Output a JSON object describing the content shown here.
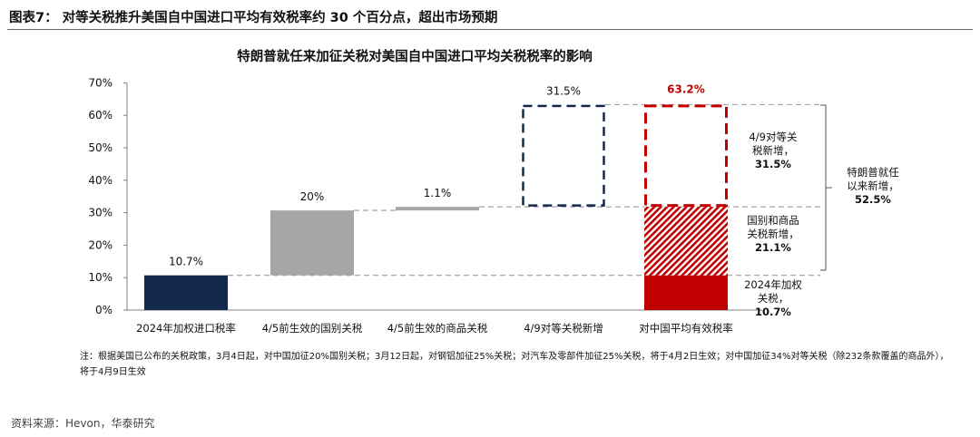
{
  "header": {
    "title": "图表7：  对等关税推升美国自中国进口平均有效税率约 30 个百分点，超出市场预期"
  },
  "source": "资料来源：Hevon，华泰研究",
  "note": "注：根据美国已公布的关税政策，3月4日起，对中国加征20%国别关税；3月12日起，对钢铝加征25%关税；对汽车及零部件加征25%关税，将于4月2日生效；对中国加征34%对等关税（除232条款覆盖的商品外），将于4月9日生效",
  "colors": {
    "navy": "#13294b",
    "gray": "#a6a6a6",
    "red": "#c00000",
    "axis": "#808080"
  },
  "chart_data": {
    "type": "bar",
    "subtype": "waterfall",
    "title": "特朗普就任来加征关税对美国自中国进口平均关税税率的影响",
    "ylim": [
      0,
      70
    ],
    "y_ticks": [
      "0%",
      "10%",
      "20%",
      "30%",
      "40%",
      "50%",
      "60%",
      "70%"
    ],
    "categories": [
      "2024年加权进口税率",
      "4/5前生效的国别关税",
      "4/5前生效的商品关税",
      "4/9对等关税新增",
      "对中国平均有效税率"
    ],
    "bars": [
      {
        "category": "2024年加权进口税率",
        "base": 0,
        "value": 10.7,
        "style": "navy-solid",
        "label": "10.7%"
      },
      {
        "category": "4/5前生效的国别关税",
        "base": 10.7,
        "value": 20,
        "style": "gray-solid",
        "label": "20%"
      },
      {
        "category": "4/5前生效的商品关税",
        "base": 30.7,
        "value": 1.1,
        "style": "gray-solid",
        "label": "1.1%"
      },
      {
        "category": "4/9对等关税新增",
        "base": 31.8,
        "value": 31.5,
        "style": "navy-dashed-outline",
        "label": "31.5%"
      },
      {
        "category": "对中国平均有效税率",
        "stack": [
          {
            "base": 0,
            "value": 10.7,
            "style": "red-solid"
          },
          {
            "base": 10.7,
            "value": 21.1,
            "style": "red-hatched"
          },
          {
            "base": 31.8,
            "value": 31.5,
            "style": "red-dashed-outline"
          }
        ],
        "label": "63.2%"
      }
    ],
    "annotations": [
      {
        "lines": [
          "4/9对等关",
          "税新增，",
          "31.5%"
        ]
      },
      {
        "lines": [
          "国别和商品",
          "关税新增，",
          "21.1%"
        ]
      },
      {
        "lines": [
          "2024年加权",
          "关税，",
          "10.7%"
        ]
      },
      {
        "lines": [
          "特朗普就任",
          "以来新增，",
          "52.5%"
        ]
      }
    ]
  }
}
